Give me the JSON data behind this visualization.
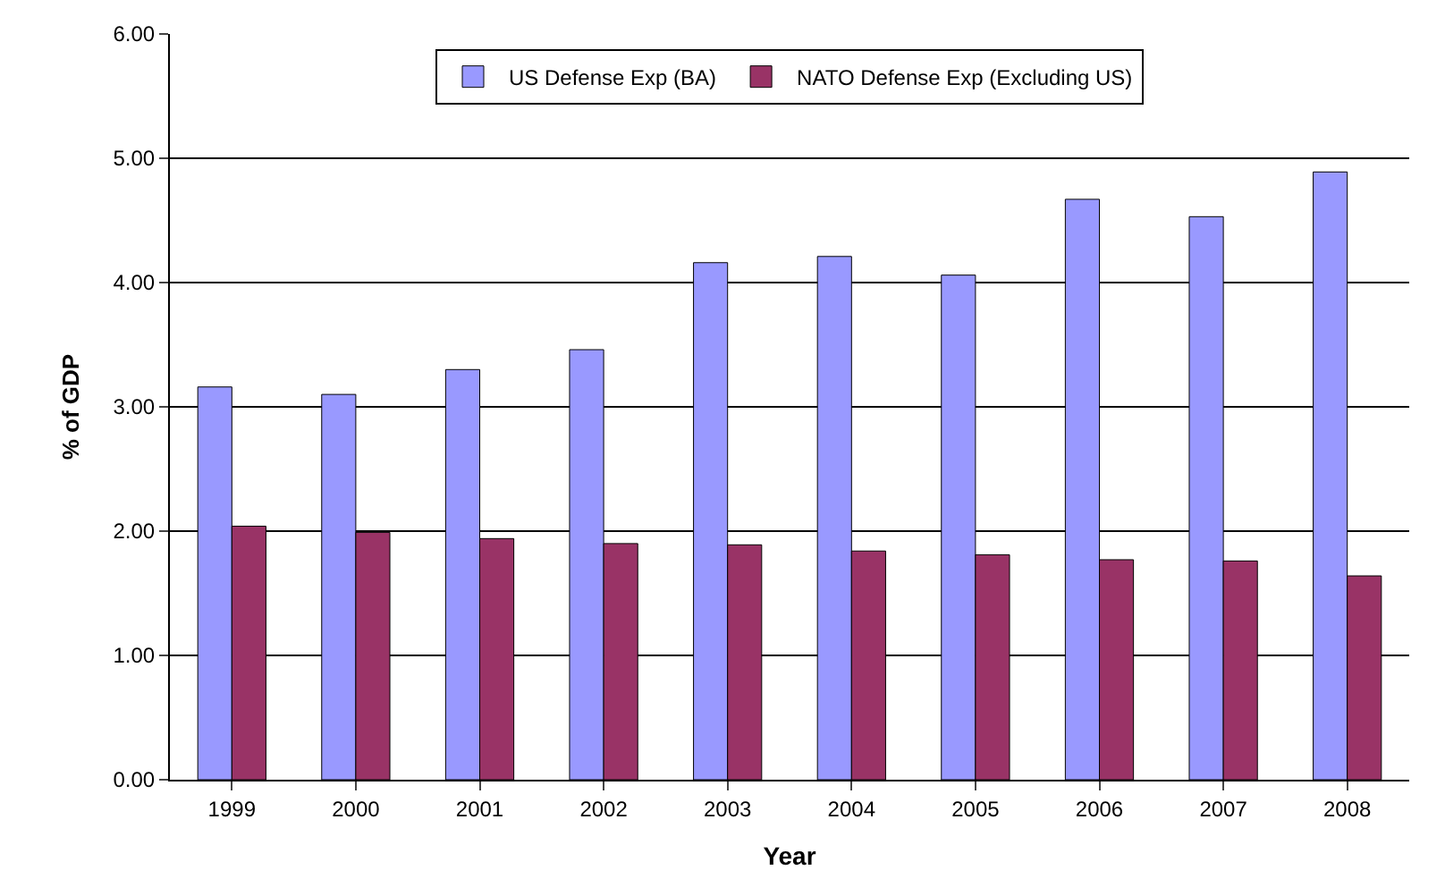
{
  "chart_data": {
    "type": "bar",
    "xlabel": "Year",
    "ylabel": "% of GDP",
    "categories": [
      "1999",
      "2000",
      "2001",
      "2002",
      "2003",
      "2004",
      "2005",
      "2006",
      "2007",
      "2008"
    ],
    "series": [
      {
        "name": "US Defense Exp (BA)",
        "color": "#9999ff",
        "values": [
          3.16,
          3.1,
          3.3,
          3.46,
          4.16,
          4.21,
          4.06,
          4.67,
          4.53,
          4.89
        ]
      },
      {
        "name": "NATO Defense Exp (Excluding US)",
        "color": "#993366",
        "values": [
          2.04,
          1.99,
          1.94,
          1.9,
          1.89,
          1.84,
          1.81,
          1.77,
          1.76,
          1.64
        ]
      }
    ],
    "ylim": [
      0,
      6
    ],
    "yticks": [
      {
        "value": 0,
        "label": "0.00"
      },
      {
        "value": 1,
        "label": "1.00"
      },
      {
        "value": 2,
        "label": "2.00"
      },
      {
        "value": 3,
        "label": "3.00"
      },
      {
        "value": 4,
        "label": "4.00"
      },
      {
        "value": 5,
        "label": "5.00"
      },
      {
        "value": 6,
        "label": "6.00"
      }
    ],
    "grid": "y",
    "legend": "top"
  }
}
